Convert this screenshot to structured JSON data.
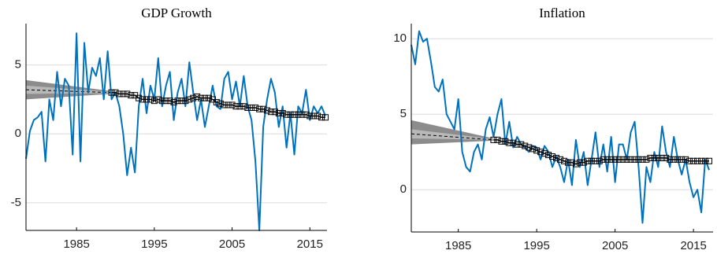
{
  "chart_data": [
    {
      "type": "line",
      "title": "GDP Growth",
      "xlim": [
        1978.5,
        2017.2
      ],
      "ylim": [
        -7,
        8
      ],
      "xticks": [
        1985,
        1995,
        2005,
        2015
      ],
      "yticks": [
        -5,
        0,
        5
      ],
      "grid": true,
      "bands": [
        {
          "color": "#8c8c8c",
          "x": [
            1978.5,
            1989.5
          ],
          "low": [
            2.5,
            2.9
          ],
          "high": [
            3.9,
            3.1
          ]
        },
        {
          "color": "#b8b8b8",
          "x": [
            1978.5,
            1989.5
          ],
          "low": [
            2.9,
            2.95
          ],
          "high": [
            3.5,
            3.05
          ]
        }
      ],
      "median": {
        "color": "#000000",
        "x": [
          1978.5,
          1989.5
        ],
        "values": [
          3.2,
          3.0
        ]
      },
      "series": [
        {
          "color": "#0072bd",
          "x": [
            1978.5,
            1979,
            1979.5,
            1980,
            1980.5,
            1981,
            1981.5,
            1982,
            1982.5,
            1983,
            1983.5,
            1984,
            1984.5,
            1985,
            1985.5,
            1986,
            1986.5,
            1987,
            1987.5,
            1988,
            1988.5,
            1989,
            1989.5,
            1990,
            1990.5,
            1991,
            1991.5,
            1992,
            1992.5,
            1993,
            1993.5,
            1994,
            1994.5,
            1995,
            1995.5,
            1996,
            1996.5,
            1997,
            1997.5,
            1998,
            1998.5,
            1999,
            1999.5,
            2000,
            2000.5,
            2001,
            2001.5,
            2002,
            2002.5,
            2003,
            2003.5,
            2004,
            2004.5,
            2005,
            2005.5,
            2006,
            2006.5,
            2007,
            2007.5,
            2008,
            2008.5,
            2009,
            2009.5,
            2010,
            2010.5,
            2011,
            2011.5,
            2012,
            2012.5,
            2013,
            2013.5,
            2014,
            2014.5,
            2015,
            2015.5,
            2016,
            2016.5,
            2017
          ],
          "values": [
            -1.8,
            0.2,
            1.0,
            1.2,
            1.6,
            -2.0,
            2.5,
            1.0,
            4.5,
            2.0,
            4.0,
            3.5,
            -1.5,
            7.3,
            -2.0,
            6.6,
            3.0,
            4.8,
            4.2,
            5.5,
            2.5,
            6.0,
            2.5,
            3.0,
            2.0,
            0.0,
            -3.0,
            -1.0,
            -2.8,
            2.0,
            4.0,
            1.5,
            3.5,
            2.5,
            5.5,
            2.0,
            3.5,
            4.5,
            1.0,
            3.0,
            4.0,
            2.0,
            5.2,
            3.0,
            1.0,
            2.5,
            0.5,
            2.0,
            3.5,
            2.0,
            1.8,
            4.0,
            4.5,
            2.5,
            3.8,
            2.0,
            4.2,
            2.0,
            1.0,
            -2.0,
            -7.0,
            0.5,
            2.5,
            4.0,
            3.0,
            0.5,
            2.0,
            -1.0,
            1.5,
            -1.5,
            2.0,
            1.5,
            3.2,
            1.0,
            2.0,
            1.5,
            2.0,
            1.3
          ]
        },
        {
          "color": "#000000",
          "marker": "square",
          "x": [
            1989.5,
            1990,
            1990.5,
            1991,
            1991.5,
            1992,
            1992.5,
            1993,
            1993.5,
            1994,
            1994.5,
            1995,
            1995.5,
            1996,
            1996.5,
            1997,
            1997.5,
            1998,
            1998.5,
            1999,
            1999.5,
            2000,
            2000.5,
            2001,
            2001.5,
            2002,
            2002.5,
            2003,
            2003.5,
            2004,
            2004.5,
            2005,
            2005.5,
            2006,
            2006.5,
            2007,
            2007.5,
            2008,
            2008.5,
            2009,
            2009.5,
            2010,
            2010.5,
            2011,
            2011.5,
            2012,
            2012.5,
            2013,
            2013.5,
            2014,
            2014.5,
            2015,
            2015.5,
            2016,
            2016.5,
            2017
          ],
          "values": [
            3.0,
            3.0,
            2.9,
            2.9,
            2.9,
            2.8,
            2.8,
            2.6,
            2.5,
            2.5,
            2.5,
            2.4,
            2.5,
            2.4,
            2.4,
            2.4,
            2.3,
            2.4,
            2.4,
            2.4,
            2.5,
            2.6,
            2.7,
            2.6,
            2.6,
            2.6,
            2.5,
            2.3,
            2.2,
            2.1,
            2.1,
            2.1,
            2.0,
            2.0,
            2.0,
            1.9,
            1.9,
            1.9,
            1.8,
            1.8,
            1.7,
            1.6,
            1.6,
            1.5,
            1.5,
            1.4,
            1.4,
            1.4,
            1.4,
            1.4,
            1.4,
            1.3,
            1.3,
            1.3,
            1.2,
            1.2
          ]
        }
      ]
    },
    {
      "type": "line",
      "title": "Inflation",
      "xlim": [
        1979,
        2017.5
      ],
      "ylim": [
        -2.8,
        11
      ],
      "xticks": [
        1985,
        1995,
        2005,
        2015
      ],
      "yticks": [
        0,
        5,
        10
      ],
      "grid": true,
      "bands": [
        {
          "color": "#8c8c8c",
          "x": [
            1979,
            1989.5
          ],
          "low": [
            3.0,
            3.25
          ],
          "high": [
            4.6,
            3.4
          ]
        },
        {
          "color": "#b8b8b8",
          "x": [
            1979,
            1989.5
          ],
          "low": [
            3.4,
            3.3
          ],
          "high": [
            4.0,
            3.35
          ]
        }
      ],
      "median": {
        "color": "#000000",
        "x": [
          1979,
          1989.5
        ],
        "values": [
          3.7,
          3.3
        ]
      },
      "series": [
        {
          "color": "#0072bd",
          "x": [
            1979,
            1979.5,
            1980,
            1980.5,
            1981,
            1981.5,
            1982,
            1982.5,
            1983,
            1983.5,
            1984,
            1984.5,
            1985,
            1985.5,
            1986,
            1986.5,
            1987,
            1987.5,
            1988,
            1988.5,
            1989,
            1989.5,
            1990,
            1990.5,
            1991,
            1991.5,
            1992,
            1992.5,
            1993,
            1993.5,
            1994,
            1994.5,
            1995,
            1995.5,
            1996,
            1996.5,
            1997,
            1997.5,
            1998,
            1998.5,
            1999,
            1999.5,
            2000,
            2000.5,
            2001,
            2001.5,
            2002,
            2002.5,
            2003,
            2003.5,
            2004,
            2004.5,
            2005,
            2005.5,
            2006,
            2006.5,
            2007,
            2007.5,
            2008,
            2008.5,
            2009,
            2009.5,
            2010,
            2010.5,
            2011,
            2011.5,
            2012,
            2012.5,
            2013,
            2013.5,
            2014,
            2014.5,
            2015,
            2015.5,
            2016,
            2016.5,
            2017
          ],
          "values": [
            9.6,
            8.3,
            10.5,
            9.8,
            10.0,
            8.5,
            6.8,
            6.5,
            7.3,
            5.0,
            4.5,
            4.0,
            6.0,
            2.5,
            1.5,
            1.2,
            2.5,
            3.0,
            2.0,
            4.0,
            4.8,
            3.5,
            5.0,
            6.0,
            3.0,
            4.5,
            2.8,
            3.5,
            3.0,
            2.8,
            2.5,
            2.9,
            2.8,
            2.0,
            2.9,
            2.5,
            1.5,
            2.2,
            1.5,
            0.5,
            2.0,
            0.3,
            3.3,
            1.5,
            2.5,
            0.3,
            2.0,
            3.8,
            1.5,
            3.0,
            1.2,
            3.5,
            0.5,
            3.0,
            3.0,
            2.0,
            3.8,
            4.5,
            1.5,
            -2.2,
            1.5,
            0.5,
            2.5,
            1.5,
            4.2,
            2.5,
            1.5,
            3.5,
            2.0,
            1.0,
            2.0,
            0.5,
            -0.5,
            0.0,
            -1.5,
            2.0,
            1.3
          ]
        },
        {
          "color": "#000000",
          "marker": "square",
          "x": [
            1989.5,
            1990,
            1990.5,
            1991,
            1991.5,
            1992,
            1992.5,
            1993,
            1993.5,
            1994,
            1994.5,
            1995,
            1995.5,
            1996,
            1996.5,
            1997,
            1997.5,
            1998,
            1998.5,
            1999,
            1999.5,
            2000,
            2000.5,
            2001,
            2001.5,
            2002,
            2002.5,
            2003,
            2003.5,
            2004,
            2004.5,
            2005,
            2005.5,
            2006,
            2006.5,
            2007,
            2007.5,
            2008,
            2008.5,
            2009,
            2009.5,
            2010,
            2010.5,
            2011,
            2011.5,
            2012,
            2012.5,
            2013,
            2013.5,
            2014,
            2014.5,
            2015,
            2015.5,
            2016,
            2016.5,
            2017
          ],
          "values": [
            3.3,
            3.3,
            3.2,
            3.2,
            3.1,
            3.1,
            3.0,
            3.0,
            2.9,
            2.8,
            2.7,
            2.6,
            2.5,
            2.4,
            2.3,
            2.2,
            2.1,
            2.0,
            1.9,
            1.8,
            1.8,
            1.7,
            1.8,
            1.8,
            1.9,
            1.9,
            1.9,
            1.9,
            2.0,
            2.0,
            2.0,
            2.0,
            2.0,
            2.0,
            2.0,
            2.0,
            2.0,
            2.0,
            2.0,
            2.0,
            2.1,
            2.1,
            2.1,
            2.1,
            2.1,
            2.0,
            2.0,
            2.0,
            2.0,
            2.0,
            1.9,
            1.9,
            1.9,
            1.9,
            1.9,
            1.9
          ]
        }
      ]
    }
  ]
}
